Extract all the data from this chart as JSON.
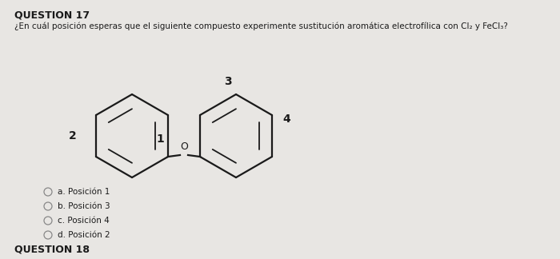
{
  "title": "QUESTION 17",
  "question": "¿En cuál posición esperas que el siguiente compuesto experimente sustitución aromática electrofílica con Cl₂ y FeCl₃?",
  "choices": [
    "a. Posición 1",
    "b. Posición 3",
    "c. Posición 4",
    "d. Posición 2"
  ],
  "bg_color": "#e8e6e3",
  "text_color": "#1a1a1a",
  "next_section": "QUESTION 18",
  "ring_color": "#1a1a1a",
  "ring_lw": 1.6,
  "inner_lw": 1.3
}
